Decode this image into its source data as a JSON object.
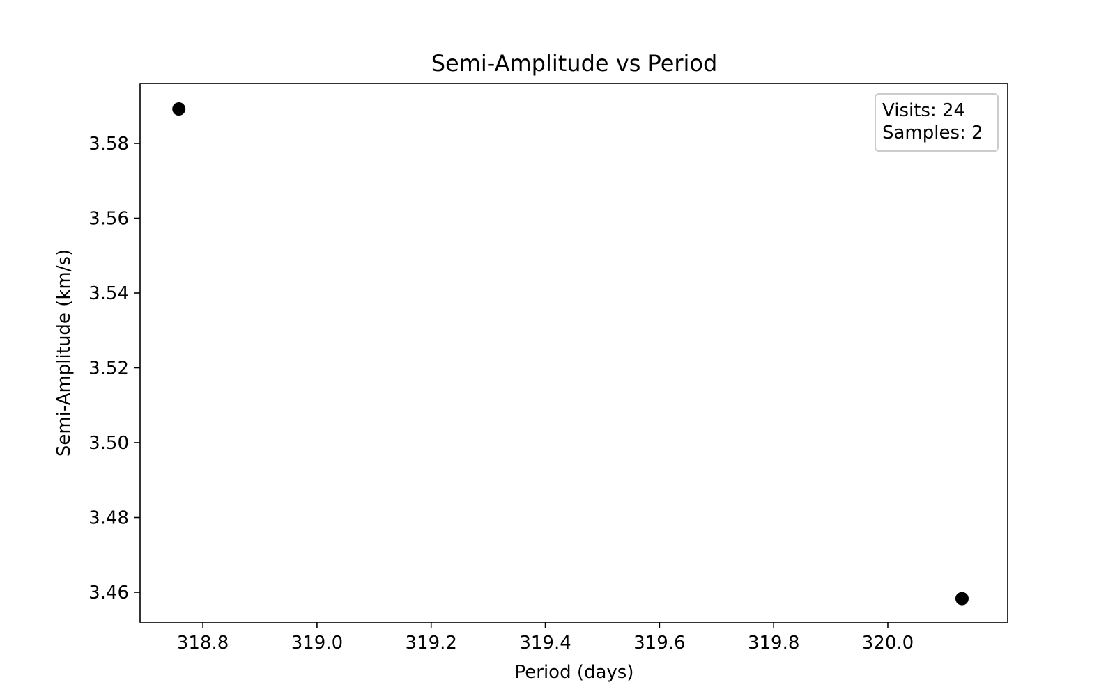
{
  "chart_data": {
    "type": "scatter",
    "title": "Semi-Amplitude vs Period",
    "xlabel": "Period (days)",
    "ylabel": "Semi-Amplitude (km/s)",
    "xlim": [
      318.69,
      320.21
    ],
    "ylim": [
      3.452,
      3.596
    ],
    "xticks": [
      318.8,
      319.0,
      319.2,
      319.4,
      319.6,
      319.8,
      320.0
    ],
    "yticks": [
      3.46,
      3.48,
      3.5,
      3.52,
      3.54,
      3.56,
      3.58
    ],
    "xtick_labels": [
      "318.8",
      "319.0",
      "319.2",
      "319.4",
      "319.6",
      "319.8",
      "320.0"
    ],
    "ytick_labels": [
      "3.46",
      "3.48",
      "3.50",
      "3.52",
      "3.54",
      "3.56",
      "3.58"
    ],
    "points": [
      {
        "x": 318.758,
        "y": 3.5892
      },
      {
        "x": 320.13,
        "y": 3.4583
      }
    ],
    "marker_color": "#000000",
    "grid": false,
    "legend": {
      "placement": "top-right",
      "lines": [
        "Visits: 24",
        "Samples: 2"
      ]
    }
  }
}
